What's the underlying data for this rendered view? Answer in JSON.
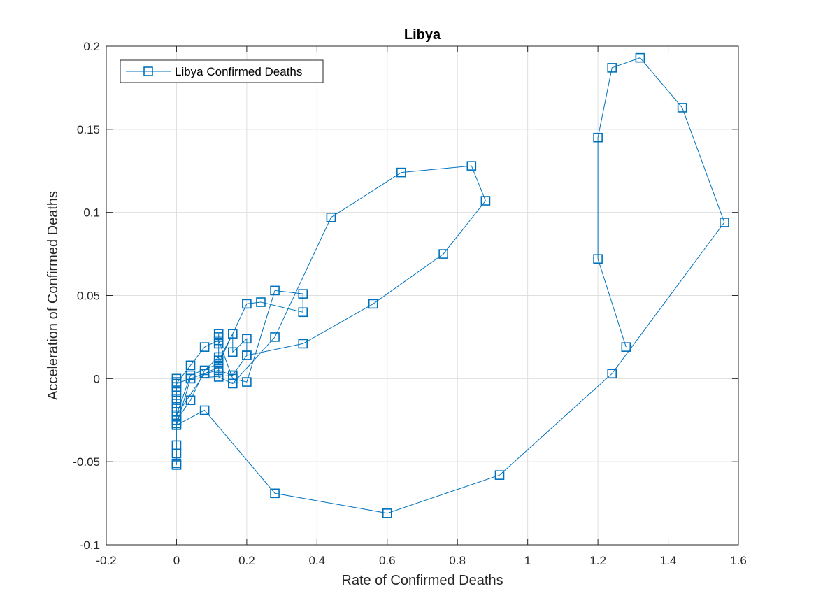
{
  "chart_data": {
    "type": "line",
    "title": "Libya",
    "xlabel": "Rate of Confirmed Deaths",
    "ylabel": "Acceleration of Confirmed Deaths",
    "xlim": [
      -0.2,
      1.6
    ],
    "ylim": [
      -0.1,
      0.2
    ],
    "xticks": [
      -0.2,
      0,
      0.2,
      0.4,
      0.6,
      0.8,
      1,
      1.2,
      1.4,
      1.6
    ],
    "xtick_labels": [
      "-0.2",
      "0",
      "0.2",
      "0.4",
      "0.6",
      "0.8",
      "1",
      "1.2",
      "1.4",
      "1.6"
    ],
    "yticks": [
      -0.1,
      -0.05,
      0,
      0.05,
      0.1,
      0.15,
      0.2
    ],
    "ytick_labels": [
      "-0.1",
      "-0.05",
      "0",
      "0.05",
      "0.1",
      "0.15",
      "0.2"
    ],
    "grid": true,
    "legend_position": "top-left",
    "color": "#0072BD",
    "marker": "square",
    "series": [
      {
        "name": "Libya Confirmed Deaths",
        "x": [
          0,
          0,
          0,
          0,
          0,
          0,
          0,
          0,
          0,
          0,
          0,
          0,
          0,
          0,
          0,
          0,
          0.04,
          0.08,
          0.12,
          0.12,
          0.12,
          0.12,
          0.12,
          0.16,
          0.16,
          0.2,
          0.2,
          0.16,
          0.04,
          0,
          0.04,
          0.08,
          0.12,
          0.16,
          0.2,
          0.28,
          0.36,
          0.36,
          0.24,
          0.2,
          0.12,
          0.04,
          0,
          0.08,
          0.12,
          0.12,
          0.16,
          0.28,
          0.44,
          0.64,
          0.84,
          0.88,
          0.76,
          0.56,
          0.36,
          0.2,
          0.16,
          0.12,
          0.08,
          0.04,
          0,
          0.08,
          0.28,
          0.6,
          0.92,
          1.24,
          1.56,
          1.44,
          1.32,
          1.24,
          1.2,
          1.2,
          1.28
        ],
        "y": [
          0,
          -0.002,
          -0.005,
          -0.008,
          -0.012,
          -0.015,
          -0.018,
          -0.02,
          -0.022,
          -0.025,
          -0.027,
          -0.04,
          -0.045,
          -0.051,
          -0.052,
          -0.025,
          -0.013,
          0.005,
          0.013,
          0.027,
          0.025,
          0.021,
          0.011,
          0.027,
          0.016,
          0.024,
          0.014,
          0.002,
          0.0,
          -0.003,
          0.008,
          0.019,
          0.023,
          0.0,
          -0.002,
          0.053,
          0.051,
          0.04,
          0.046,
          0.045,
          0.009,
          0.002,
          -0.022,
          0.003,
          0.007,
          0.001,
          -0.003,
          0.025,
          0.097,
          0.124,
          0.128,
          0.107,
          0.075,
          0.045,
          0.021,
          0.014,
          0.002,
          0.005,
          0.003,
          0.0,
          -0.028,
          -0.019,
          -0.069,
          -0.081,
          -0.058,
          0.003,
          0.094,
          0.163,
          0.193,
          0.187,
          0.145,
          0.072,
          0.019
        ]
      }
    ]
  }
}
